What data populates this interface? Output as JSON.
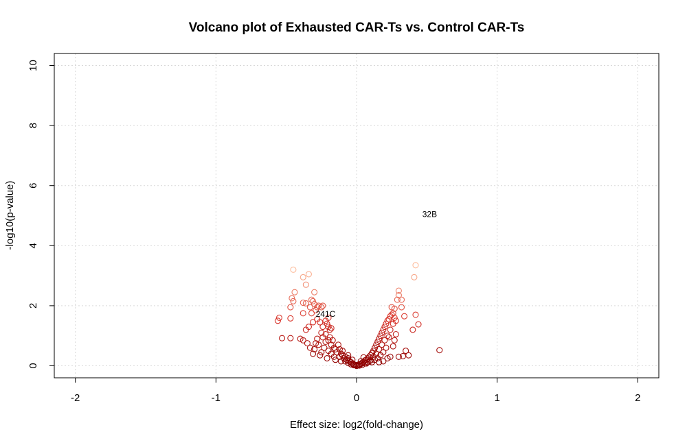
{
  "chart_data": {
    "type": "scatter",
    "title": "Volcano plot of Exhausted CAR-Ts vs. Control CAR-Ts",
    "xlabel": "Effect size: log2(fold-change)",
    "ylabel": "-log10(p-value)",
    "xlim": [
      -2.15,
      2.15
    ],
    "ylim": [
      -0.4,
      10.4
    ],
    "xticks": [
      -2,
      -1,
      0,
      1,
      2
    ],
    "yticks": [
      0,
      2,
      4,
      6,
      8,
      10
    ],
    "grid": true,
    "colors": {
      "low": "#8b0000",
      "mid": "#d73027",
      "high": "#fdbb9a"
    },
    "annotations": [
      {
        "text": "32B",
        "x": 0.52,
        "y": 5.05
      },
      {
        "text": "241C",
        "x": -0.22,
        "y": 1.72
      }
    ],
    "points": [
      [
        -0.56,
        1.5
      ],
      [
        -0.55,
        1.6
      ],
      [
        -0.53,
        0.92
      ],
      [
        -0.47,
        1.95
      ],
      [
        -0.47,
        1.58
      ],
      [
        -0.47,
        0.92
      ],
      [
        -0.45,
        3.2
      ],
      [
        -0.46,
        2.25
      ],
      [
        -0.45,
        2.15
      ],
      [
        -0.44,
        2.45
      ],
      [
        -0.4,
        0.9
      ],
      [
        -0.38,
        0.85
      ],
      [
        -0.38,
        2.95
      ],
      [
        -0.38,
        2.1
      ],
      [
        -0.36,
        2.7
      ],
      [
        -0.36,
        2.08
      ],
      [
        -0.34,
        3.05
      ],
      [
        -0.33,
        1.95
      ],
      [
        -0.32,
        2.2
      ],
      [
        -0.31,
        2.15
      ],
      [
        -0.3,
        2.45
      ],
      [
        -0.3,
        2.05
      ],
      [
        -0.29,
        1.85
      ],
      [
        -0.28,
        1.95
      ],
      [
        -0.27,
        2.0
      ],
      [
        -0.25,
        1.95
      ],
      [
        -0.24,
        2.0
      ],
      [
        -0.32,
        1.75
      ],
      [
        -0.38,
        1.75
      ],
      [
        -0.34,
        1.3
      ],
      [
        -0.36,
        1.2
      ],
      [
        -0.31,
        1.45
      ],
      [
        -0.28,
        1.55
      ],
      [
        -0.26,
        1.45
      ],
      [
        -0.24,
        1.3
      ],
      [
        -0.22,
        1.5
      ],
      [
        -0.21,
        1.4
      ],
      [
        -0.2,
        1.3
      ],
      [
        -0.2,
        1.6
      ],
      [
        -0.19,
        1.2
      ],
      [
        -0.18,
        1.25
      ],
      [
        -0.35,
        0.75
      ],
      [
        -0.33,
        0.6
      ],
      [
        -0.31,
        0.4
      ],
      [
        -0.3,
        0.55
      ],
      [
        -0.29,
        0.75
      ],
      [
        -0.28,
        0.9
      ],
      [
        -0.27,
        0.7
      ],
      [
        -0.26,
        0.35
      ],
      [
        -0.25,
        0.45
      ],
      [
        -0.25,
        1.1
      ],
      [
        -0.24,
        0.95
      ],
      [
        -0.23,
        0.6
      ],
      [
        -0.22,
        0.8
      ],
      [
        -0.22,
        1.05
      ],
      [
        -0.21,
        0.25
      ],
      [
        -0.2,
        0.5
      ],
      [
        -0.2,
        0.85
      ],
      [
        -0.19,
        0.95
      ],
      [
        -0.18,
        0.7
      ],
      [
        -0.18,
        0.4
      ],
      [
        -0.17,
        0.85
      ],
      [
        -0.16,
        0.6
      ],
      [
        -0.16,
        0.3
      ],
      [
        -0.15,
        0.55
      ],
      [
        -0.15,
        0.2
      ],
      [
        -0.14,
        0.45
      ],
      [
        -0.13,
        0.7
      ],
      [
        -0.12,
        0.55
      ],
      [
        -0.12,
        0.3
      ],
      [
        -0.11,
        0.4
      ],
      [
        -0.11,
        0.15
      ],
      [
        -0.1,
        0.35
      ],
      [
        -0.1,
        0.5
      ],
      [
        -0.09,
        0.25
      ],
      [
        -0.08,
        0.3
      ],
      [
        -0.08,
        0.15
      ],
      [
        -0.07,
        0.2
      ],
      [
        -0.06,
        0.25
      ],
      [
        -0.06,
        0.1
      ],
      [
        -0.05,
        0.15
      ],
      [
        -0.04,
        0.12
      ],
      [
        -0.04,
        0.05
      ],
      [
        -0.03,
        0.08
      ],
      [
        -0.02,
        0.05
      ],
      [
        -0.02,
        0.02
      ],
      [
        -0.01,
        0.03
      ],
      [
        0.0,
        0.0
      ],
      [
        0.0,
        0.02
      ],
      [
        0.01,
        0.02
      ],
      [
        0.02,
        0.05
      ],
      [
        0.02,
        0.01
      ],
      [
        0.03,
        0.06
      ],
      [
        0.04,
        0.1
      ],
      [
        0.04,
        0.03
      ],
      [
        0.05,
        0.12
      ],
      [
        0.06,
        0.18
      ],
      [
        0.06,
        0.08
      ],
      [
        0.07,
        0.2
      ],
      [
        0.08,
        0.25
      ],
      [
        0.08,
        0.12
      ],
      [
        0.09,
        0.3
      ],
      [
        0.1,
        0.35
      ],
      [
        0.1,
        0.18
      ],
      [
        0.11,
        0.42
      ],
      [
        0.12,
        0.5
      ],
      [
        0.12,
        0.3
      ],
      [
        0.13,
        0.6
      ],
      [
        0.14,
        0.7
      ],
      [
        0.14,
        0.4
      ],
      [
        0.15,
        0.8
      ],
      [
        0.16,
        0.9
      ],
      [
        0.16,
        0.55
      ],
      [
        0.17,
        1.0
      ],
      [
        0.18,
        1.1
      ],
      [
        0.18,
        0.7
      ],
      [
        0.19,
        1.2
      ],
      [
        0.2,
        1.3
      ],
      [
        0.2,
        0.85
      ],
      [
        0.21,
        1.4
      ],
      [
        0.22,
        1.5
      ],
      [
        0.22,
        1.0
      ],
      [
        0.23,
        1.55
      ],
      [
        0.24,
        1.65
      ],
      [
        0.24,
        1.2
      ],
      [
        0.25,
        1.7
      ],
      [
        0.26,
        1.75
      ],
      [
        0.26,
        1.4
      ],
      [
        0.27,
        1.6
      ],
      [
        0.28,
        1.5
      ],
      [
        0.25,
        1.95
      ],
      [
        0.27,
        1.9
      ],
      [
        0.29,
        2.2
      ],
      [
        0.3,
        2.35
      ],
      [
        0.3,
        2.5
      ],
      [
        0.32,
        2.2
      ],
      [
        0.34,
        1.65
      ],
      [
        0.32,
        1.95
      ],
      [
        0.28,
        1.05
      ],
      [
        0.27,
        0.85
      ],
      [
        0.26,
        0.65
      ],
      [
        0.23,
        0.95
      ],
      [
        0.21,
        0.6
      ],
      [
        0.19,
        0.45
      ],
      [
        0.17,
        0.35
      ],
      [
        0.15,
        0.25
      ],
      [
        0.13,
        0.2
      ],
      [
        0.11,
        0.12
      ],
      [
        0.09,
        0.15
      ],
      [
        0.07,
        0.08
      ],
      [
        0.22,
        0.25
      ],
      [
        0.24,
        0.3
      ],
      [
        0.19,
        0.15
      ],
      [
        0.16,
        0.12
      ],
      [
        0.3,
        0.3
      ],
      [
        0.33,
        0.32
      ],
      [
        0.35,
        0.5
      ],
      [
        0.37,
        0.35
      ],
      [
        0.4,
        1.2
      ],
      [
        0.42,
        1.7
      ],
      [
        0.44,
        1.38
      ],
      [
        0.41,
        2.95
      ],
      [
        0.42,
        3.35
      ],
      [
        0.59,
        0.52
      ],
      [
        -0.06,
        0.35
      ],
      [
        -0.03,
        0.2
      ],
      [
        0.05,
        0.28
      ],
      [
        0.03,
        0.15
      ]
    ]
  }
}
